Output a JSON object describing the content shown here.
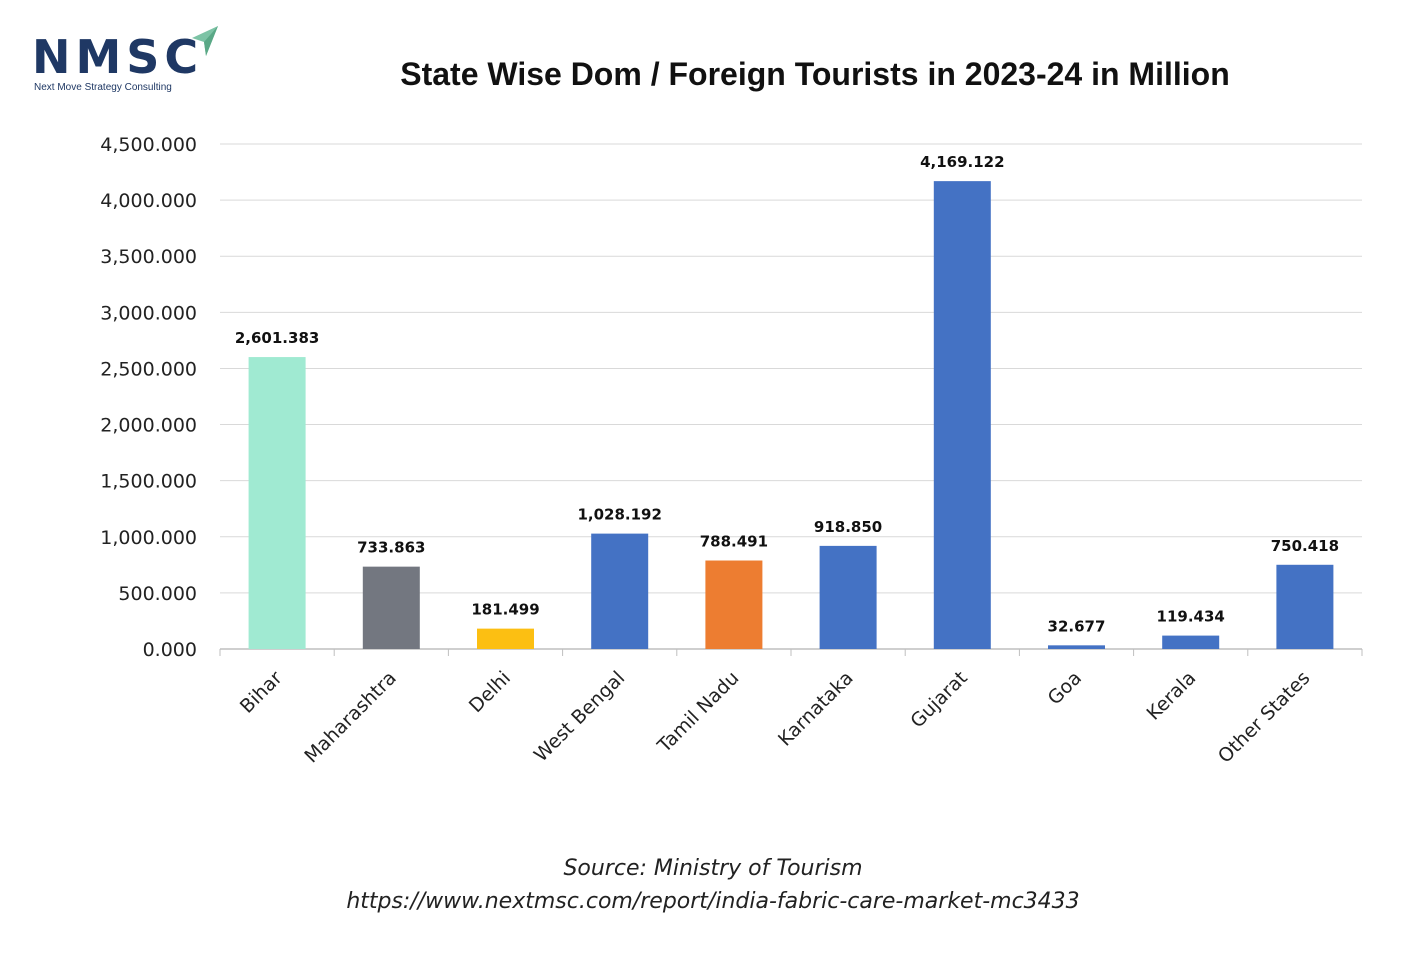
{
  "logo": {
    "text": "NMSC",
    "tagline": "Next Move Strategy Consulting"
  },
  "colors": {
    "mint": "#a0ead2",
    "gray": "#737780",
    "yellow": "#fcbf12",
    "blue": "#4472c4",
    "orange": "#ed7d31",
    "logo_navy": "#1f3864",
    "logo_green": "#7cc3a5"
  },
  "chart_data": {
    "type": "bar",
    "title": "State Wise Dom / Foreign Tourists in 2023-24 in Million",
    "categories": [
      "Bihar",
      "Maharashtra",
      "Delhi",
      "West Bengal",
      "Tamil Nadu",
      "Karnataka",
      "Gujarat",
      "Goa",
      "Kerala",
      "Other States"
    ],
    "values": [
      2601.383,
      733.863,
      181.499,
      1028.192,
      788.491,
      918.85,
      4169.122,
      32.677,
      119.434,
      750.418
    ],
    "data_labels": [
      "2,601.383",
      "733.863",
      "181.499",
      "1,028.192",
      "788.491",
      "918.850",
      "4,169.122",
      "32.677",
      "119.434",
      "750.418"
    ],
    "bar_colors": [
      "#a0ead2",
      "#737780",
      "#fcbf12",
      "#4472c4",
      "#ed7d31",
      "#4472c4",
      "#4472c4",
      "#4472c4",
      "#4472c4",
      "#4472c4"
    ],
    "yticks": [
      "0.000",
      "500.000",
      "1,000.000",
      "1,500.000",
      "2,000.000",
      "2,500.000",
      "3,000.000",
      "3,500.000",
      "4,000.000",
      "4,500.000"
    ],
    "ylim": [
      0,
      4500
    ],
    "grid": true,
    "legend": "none",
    "xlabel": "",
    "ylabel": ""
  },
  "footer": {
    "source": "Source: Ministry of Tourism",
    "url": "https://www.nextmsc.com/report/india-fabric-care-market-mc3433"
  }
}
